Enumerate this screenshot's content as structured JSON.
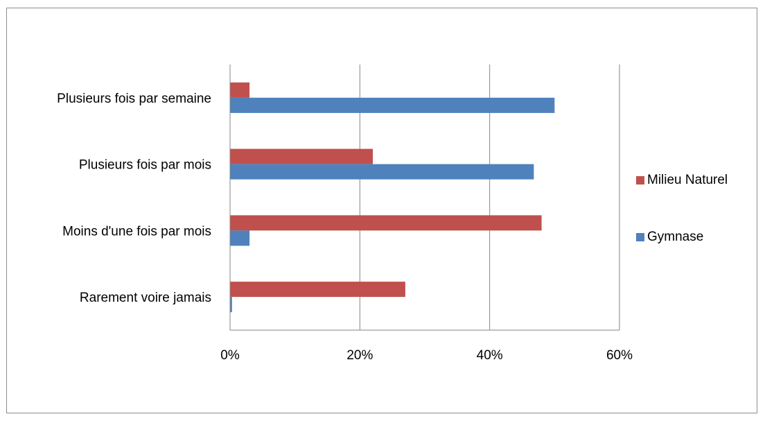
{
  "chart_data": {
    "type": "bar",
    "orientation": "horizontal",
    "categories": [
      "Plusieurs fois par semaine",
      "Plusieurs fois par mois",
      "Moins d'une fois par mois",
      "Rarement voire jamais"
    ],
    "series": [
      {
        "name": "Milieu Naturel",
        "color": "#c0504d",
        "values": [
          3,
          22,
          48,
          27
        ]
      },
      {
        "name": "Gymnase",
        "color": "#4f81bd",
        "values": [
          50,
          46.8,
          3,
          0.3
        ]
      }
    ],
    "xlim": [
      0,
      60
    ],
    "xticks": [
      0,
      20,
      40,
      60
    ],
    "xtick_labels": [
      "0%",
      "20%",
      "40%",
      "60%"
    ],
    "legend": "right",
    "grid": "vertical",
    "gridline_color": "#868686"
  }
}
